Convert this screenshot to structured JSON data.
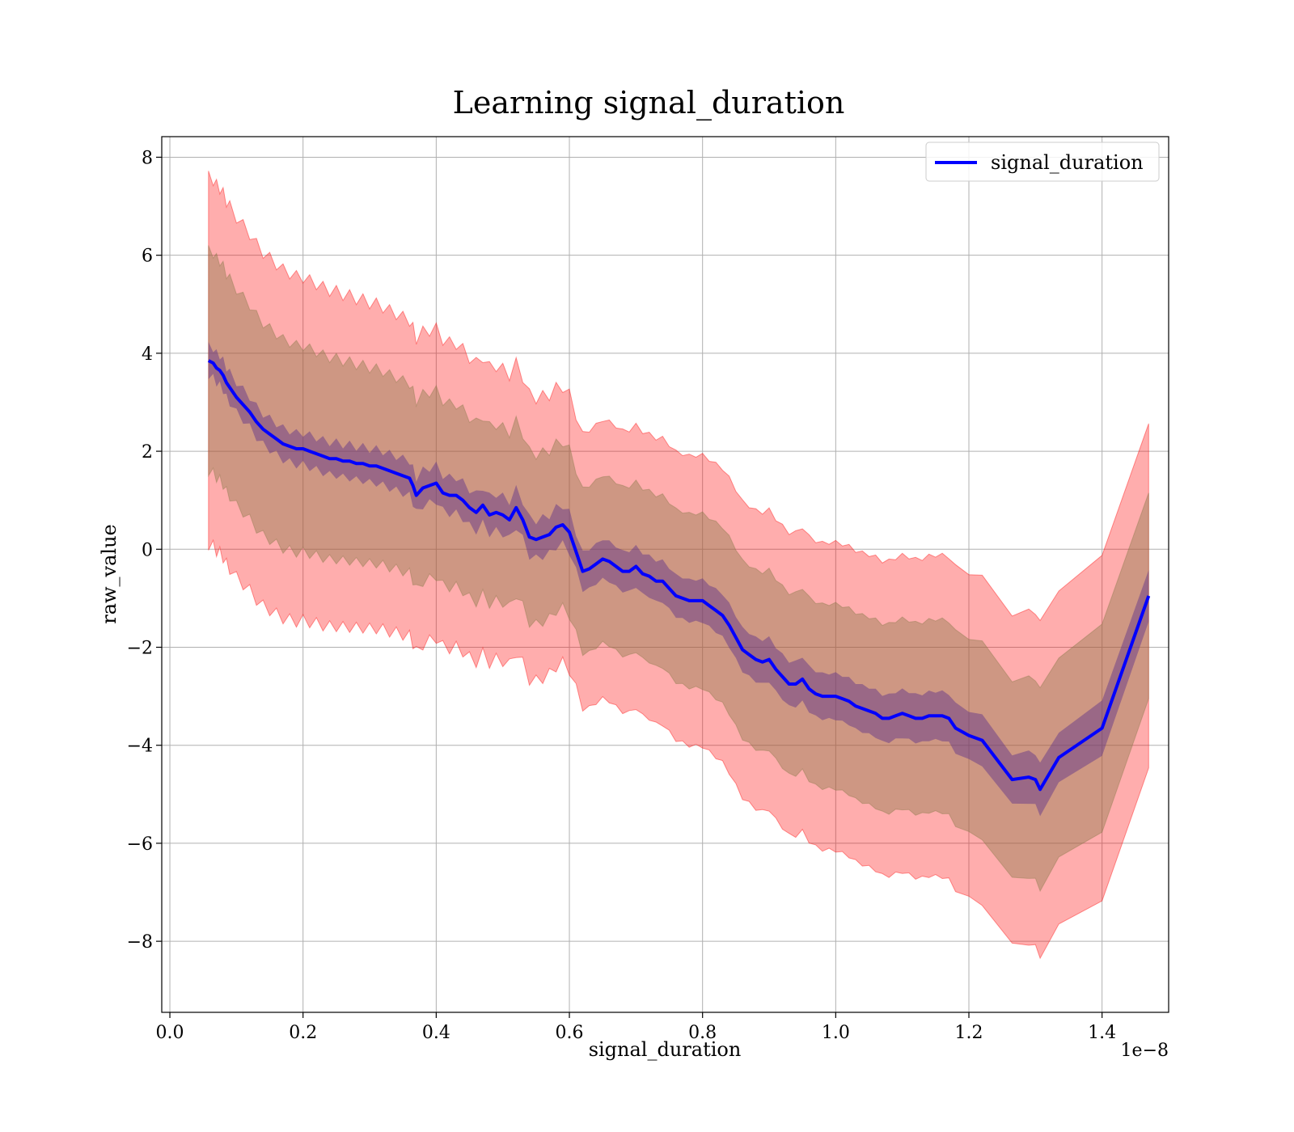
{
  "chart_data": {
    "type": "line",
    "title": "Learning signal_duration",
    "xlabel": "signal_duration",
    "ylabel": "raw_value",
    "x_offset_label": "1e−8",
    "xlim": [
      -0.0122,
      1.5
    ],
    "ylim": [
      -9.45,
      8.42
    ],
    "grid": true,
    "legend_position": "top-right",
    "x_ticks": [
      {
        "value": 0.0,
        "label": "0.0"
      },
      {
        "value": 0.2,
        "label": "0.2"
      },
      {
        "value": 0.4,
        "label": "0.4"
      },
      {
        "value": 0.6,
        "label": "0.6"
      },
      {
        "value": 0.8,
        "label": "0.8"
      },
      {
        "value": 1.0,
        "label": "1.0"
      },
      {
        "value": 1.2,
        "label": "1.2"
      },
      {
        "value": 1.4,
        "label": "1.4"
      }
    ],
    "y_ticks": [
      {
        "value": 8,
        "label": "8"
      },
      {
        "value": 6,
        "label": "6"
      },
      {
        "value": 4,
        "label": "4"
      },
      {
        "value": 2,
        "label": "2"
      },
      {
        "value": 0,
        "label": "0"
      },
      {
        "value": -2,
        "label": "−2"
      },
      {
        "value": -4,
        "label": "−4"
      },
      {
        "value": -6,
        "label": "−6"
      },
      {
        "value": -8,
        "label": "−8"
      }
    ],
    "colors": {
      "line": "#0000ff",
      "band": "#ff0000",
      "inner_band": "#d07a40",
      "grid": "#b0b0b0"
    },
    "series": [
      {
        "name": "signal_duration",
        "x": [
          0.058,
          0.065,
          0.07,
          0.075,
          0.08,
          0.085,
          0.09,
          0.1,
          0.11,
          0.12,
          0.13,
          0.14,
          0.15,
          0.16,
          0.17,
          0.18,
          0.19,
          0.2,
          0.21,
          0.22,
          0.23,
          0.24,
          0.25,
          0.26,
          0.27,
          0.28,
          0.29,
          0.3,
          0.31,
          0.32,
          0.33,
          0.34,
          0.35,
          0.36,
          0.365,
          0.37,
          0.38,
          0.39,
          0.4,
          0.41,
          0.42,
          0.43,
          0.44,
          0.45,
          0.46,
          0.47,
          0.48,
          0.49,
          0.5,
          0.51,
          0.52,
          0.53,
          0.54,
          0.55,
          0.56,
          0.57,
          0.58,
          0.59,
          0.6,
          0.61,
          0.62,
          0.63,
          0.64,
          0.65,
          0.66,
          0.67,
          0.68,
          0.69,
          0.7,
          0.71,
          0.72,
          0.73,
          0.74,
          0.75,
          0.76,
          0.77,
          0.78,
          0.79,
          0.8,
          0.81,
          0.82,
          0.83,
          0.84,
          0.85,
          0.86,
          0.87,
          0.88,
          0.89,
          0.9,
          0.91,
          0.92,
          0.93,
          0.94,
          0.95,
          0.96,
          0.97,
          0.98,
          0.99,
          1.0,
          1.01,
          1.02,
          1.03,
          1.04,
          1.05,
          1.06,
          1.07,
          1.08,
          1.09,
          1.1,
          1.11,
          1.12,
          1.13,
          1.14,
          1.15,
          1.16,
          1.17,
          1.18,
          1.2,
          1.22,
          1.265,
          1.29,
          1.3,
          1.307,
          1.335,
          1.4,
          1.47
        ],
        "y": [
          3.85,
          3.8,
          3.7,
          3.65,
          3.55,
          3.4,
          3.3,
          3.1,
          2.95,
          2.8,
          2.6,
          2.45,
          2.35,
          2.25,
          2.15,
          2.1,
          2.05,
          2.05,
          2.0,
          1.95,
          1.9,
          1.85,
          1.85,
          1.8,
          1.8,
          1.75,
          1.75,
          1.7,
          1.7,
          1.65,
          1.6,
          1.55,
          1.5,
          1.45,
          1.3,
          1.1,
          1.25,
          1.3,
          1.35,
          1.15,
          1.1,
          1.1,
          1.0,
          0.85,
          0.75,
          0.9,
          0.7,
          0.75,
          0.7,
          0.6,
          0.85,
          0.6,
          0.25,
          0.2,
          0.25,
          0.3,
          0.45,
          0.5,
          0.35,
          -0.05,
          -0.45,
          -0.4,
          -0.3,
          -0.2,
          -0.25,
          -0.35,
          -0.45,
          -0.45,
          -0.35,
          -0.5,
          -0.55,
          -0.65,
          -0.65,
          -0.8,
          -0.95,
          -1.0,
          -1.05,
          -1.05,
          -1.05,
          -1.15,
          -1.25,
          -1.35,
          -1.55,
          -1.8,
          -2.05,
          -2.15,
          -2.25,
          -2.3,
          -2.25,
          -2.45,
          -2.6,
          -2.75,
          -2.75,
          -2.65,
          -2.85,
          -2.95,
          -3.0,
          -3.0,
          -3.0,
          -3.05,
          -3.1,
          -3.2,
          -3.25,
          -3.3,
          -3.35,
          -3.45,
          -3.45,
          -3.4,
          -3.35,
          -3.4,
          -3.45,
          -3.45,
          -3.4,
          -3.4,
          -3.4,
          -3.45,
          -3.65,
          -3.8,
          -3.9,
          -4.7,
          -4.65,
          -4.7,
          -4.9,
          -4.25,
          -3.65,
          -0.95
        ]
      }
    ]
  }
}
